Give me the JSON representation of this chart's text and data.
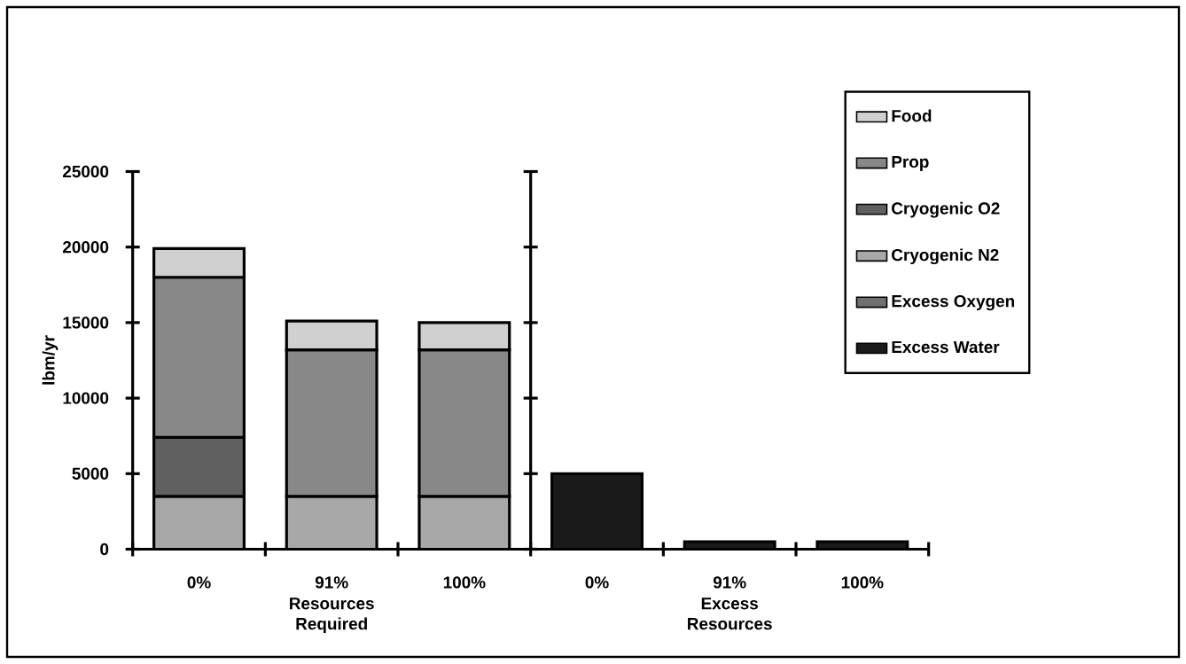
{
  "chart_data": {
    "type": "bar",
    "stacked": true,
    "ylabel": "lbm/yr",
    "categories": [
      "0%",
      "91%",
      "100%",
      "0%",
      "91%",
      "100%"
    ],
    "series": [
      {
        "name": "Excess Water",
        "color": "#1a1a1a",
        "values": [
          null,
          null,
          null,
          5000,
          500,
          500
        ]
      },
      {
        "name": "Excess Oxygen",
        "color": "#707070",
        "values": [
          null,
          null,
          null,
          null,
          null,
          null
        ]
      },
      {
        "name": "Cryogenic N2",
        "color": "#a8a8a8",
        "values": [
          3500,
          3500,
          3500,
          null,
          null,
          null
        ]
      },
      {
        "name": "Cryogenic O2",
        "color": "#606060",
        "values": [
          3900,
          null,
          null,
          null,
          null,
          null
        ]
      },
      {
        "name": "Prop",
        "color": "#888888",
        "values": [
          10600,
          9700,
          9700,
          null,
          null,
          null
        ]
      },
      {
        "name": "Food",
        "color": "#d0d0d0",
        "values": [
          1900,
          1900,
          1800,
          null,
          null,
          null
        ]
      }
    ],
    "ylim": [
      0,
      25000
    ],
    "yticks": [
      0,
      5000,
      10000,
      15000,
      20000,
      25000
    ],
    "legend": "top right",
    "annotations": [
      "Resources Required",
      "Excess Resources"
    ]
  }
}
